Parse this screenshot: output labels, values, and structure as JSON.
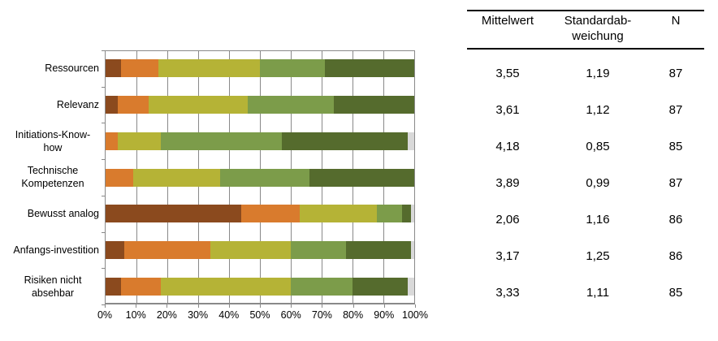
{
  "chart_data": {
    "type": "bar",
    "orientation": "horizontal",
    "stacked": true,
    "unit": "percent",
    "title": "",
    "xlabel": "",
    "ylabel": "",
    "xlim": [
      0,
      100
    ],
    "grid": true,
    "legend": "none",
    "categories": [
      "Ressourcen",
      "Relevanz",
      "Initiations-Know-how",
      "Technische Kompetenzen",
      "Bewusst analog",
      "Anfangs-investition",
      "Risiken nicht absehbar"
    ],
    "series": [
      {
        "name": "dark-brown-segment",
        "color": "#8B4A1E",
        "values": [
          5,
          4,
          0,
          0,
          44,
          6,
          5
        ]
      },
      {
        "name": "orange-segment",
        "color": "#D97B2D",
        "values": [
          12,
          10,
          4,
          9,
          19,
          28,
          13
        ]
      },
      {
        "name": "yellow-green-segment",
        "color": "#B5B336",
        "values": [
          33,
          32,
          14,
          28,
          25,
          26,
          42
        ]
      },
      {
        "name": "medium-green-segment",
        "color": "#7C9C4A",
        "values": [
          21,
          28,
          39,
          29,
          8,
          18,
          20
        ]
      },
      {
        "name": "dark-green-segment",
        "color": "#556B2D",
        "values": [
          29,
          26,
          41,
          34,
          3,
          21,
          18
        ]
      },
      {
        "name": "light-gray-segment",
        "color": "#D9D9D9",
        "values": [
          0,
          0,
          2,
          0,
          1,
          1,
          2
        ]
      }
    ],
    "x_ticks": [
      "0%",
      "10%",
      "20%",
      "30%",
      "40%",
      "50%",
      "60%",
      "70%",
      "80%",
      "90%",
      "100%"
    ]
  },
  "table": {
    "headers": [
      "Mittelwert",
      "Standardab-weichung",
      "N"
    ],
    "rows": [
      {
        "mittelwert": "3,55",
        "sd": "1,19",
        "n": "87"
      },
      {
        "mittelwert": "3,61",
        "sd": "1,12",
        "n": "87"
      },
      {
        "mittelwert": "4,18",
        "sd": "0,85",
        "n": "85"
      },
      {
        "mittelwert": "3,89",
        "sd": "0,99",
        "n": "87"
      },
      {
        "mittelwert": "2,06",
        "sd": "1,16",
        "n": "86"
      },
      {
        "mittelwert": "3,17",
        "sd": "1,25",
        "n": "86"
      },
      {
        "mittelwert": "3,33",
        "sd": "1,11",
        "n": "85"
      }
    ]
  },
  "colors": {
    "gridline": "#898989",
    "table_border": "#000000",
    "background": "#FFFFFF"
  }
}
